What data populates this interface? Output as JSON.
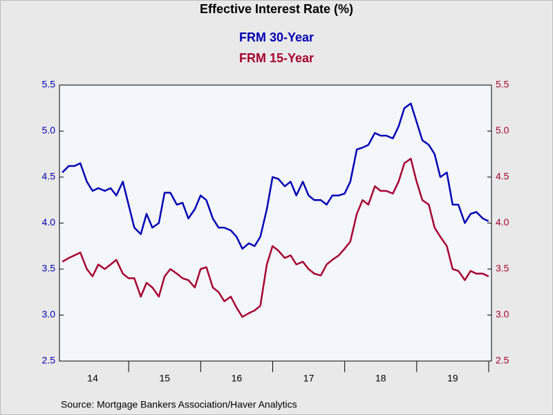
{
  "chart_data": {
    "type": "line",
    "title": "Effective Interest Rate (%)",
    "source": "Source:  Mortgage Bankers Association/Haver Analytics",
    "x": [
      2014.04,
      2014.13,
      2014.21,
      2014.29,
      2014.38,
      2014.46,
      2014.54,
      2014.63,
      2014.71,
      2014.79,
      2014.88,
      2014.96,
      2015.04,
      2015.13,
      2015.21,
      2015.29,
      2015.38,
      2015.46,
      2015.54,
      2015.63,
      2015.71,
      2015.79,
      2015.88,
      2015.96,
      2016.04,
      2016.13,
      2016.21,
      2016.29,
      2016.38,
      2016.46,
      2016.54,
      2016.63,
      2016.71,
      2016.79,
      2016.88,
      2016.96,
      2017.04,
      2017.13,
      2017.21,
      2017.29,
      2017.38,
      2017.46,
      2017.54,
      2017.63,
      2017.71,
      2017.79,
      2017.88,
      2017.96,
      2018.04,
      2018.13,
      2018.21,
      2018.29,
      2018.38,
      2018.46,
      2018.54,
      2018.63,
      2018.71,
      2018.79,
      2018.88,
      2018.96,
      2019.04,
      2019.13,
      2019.21,
      2019.29,
      2019.38,
      2019.46,
      2019.54,
      2019.63,
      2019.71,
      2019.79,
      2019.88,
      2019.96
    ],
    "series": [
      {
        "name": "FRM 30-Year",
        "color": "#0000b4",
        "values": [
          4.55,
          4.62,
          4.62,
          4.65,
          4.45,
          4.35,
          4.38,
          4.35,
          4.38,
          4.3,
          4.45,
          4.2,
          3.95,
          3.88,
          4.1,
          3.95,
          4.0,
          4.33,
          4.33,
          4.2,
          4.22,
          4.05,
          4.15,
          4.3,
          4.25,
          4.05,
          3.95,
          3.95,
          3.92,
          3.85,
          3.72,
          3.78,
          3.75,
          3.85,
          4.15,
          4.5,
          4.48,
          4.4,
          4.45,
          4.3,
          4.45,
          4.3,
          4.25,
          4.25,
          4.2,
          4.3,
          4.3,
          4.32,
          4.45,
          4.8,
          4.82,
          4.85,
          4.98,
          4.95,
          4.95,
          4.92,
          5.05,
          5.25,
          5.3,
          5.1,
          4.9,
          4.85,
          4.75,
          4.5,
          4.55,
          4.2,
          4.2,
          4.0,
          4.1,
          4.12,
          4.05,
          4.02
        ]
      },
      {
        "name": "FRM 15-Year",
        "color": "#a8002e",
        "axis": "y2",
        "values": [
          3.58,
          3.62,
          3.65,
          3.68,
          3.5,
          3.42,
          3.55,
          3.5,
          3.55,
          3.6,
          3.45,
          3.4,
          3.4,
          3.2,
          3.35,
          3.3,
          3.2,
          3.42,
          3.5,
          3.45,
          3.4,
          3.38,
          3.3,
          3.5,
          3.52,
          3.3,
          3.25,
          3.15,
          3.2,
          3.08,
          2.98,
          3.02,
          3.05,
          3.1,
          3.55,
          3.75,
          3.7,
          3.62,
          3.65,
          3.55,
          3.58,
          3.5,
          3.45,
          3.43,
          3.55,
          3.6,
          3.65,
          3.72,
          3.8,
          4.1,
          4.25,
          4.2,
          4.4,
          4.35,
          4.35,
          4.32,
          4.45,
          4.65,
          4.7,
          4.45,
          4.25,
          4.2,
          3.95,
          3.85,
          3.75,
          3.5,
          3.48,
          3.38,
          3.48,
          3.45,
          3.45,
          3.42
        ]
      }
    ],
    "xlim": [
      2014.0,
      2020.0
    ],
    "xticks": [
      {
        "value": 2014.5,
        "label": "14"
      },
      {
        "value": 2015.5,
        "label": "15"
      },
      {
        "value": 2016.5,
        "label": "16"
      },
      {
        "value": 2017.5,
        "label": "17"
      },
      {
        "value": 2018.5,
        "label": "18"
      },
      {
        "value": 2019.5,
        "label": "19"
      }
    ],
    "x_minor_ticks": [
      2015,
      2016,
      2017,
      2018,
      2019,
      2020
    ],
    "ylim": [
      2.5,
      5.5
    ],
    "yticks": [
      {
        "value": 2.5,
        "label": "2.5"
      },
      {
        "value": 3.0,
        "label": "3.0"
      },
      {
        "value": 3.5,
        "label": "3.5"
      },
      {
        "value": 4.0,
        "label": "4.0"
      },
      {
        "value": 4.5,
        "label": "4.5"
      },
      {
        "value": 5.0,
        "label": "5.0"
      },
      {
        "value": 5.5,
        "label": "5.5"
      }
    ],
    "y2lim": [
      2.5,
      5.5
    ],
    "y2ticks": [
      {
        "value": 2.5,
        "label": "2.5"
      },
      {
        "value": 3.0,
        "label": "3.0"
      },
      {
        "value": 3.5,
        "label": "3.5"
      },
      {
        "value": 4.0,
        "label": "4.0"
      },
      {
        "value": 4.5,
        "label": "4.5"
      },
      {
        "value": 5.0,
        "label": "5.0"
      },
      {
        "value": 5.5,
        "label": "5.5"
      }
    ]
  }
}
